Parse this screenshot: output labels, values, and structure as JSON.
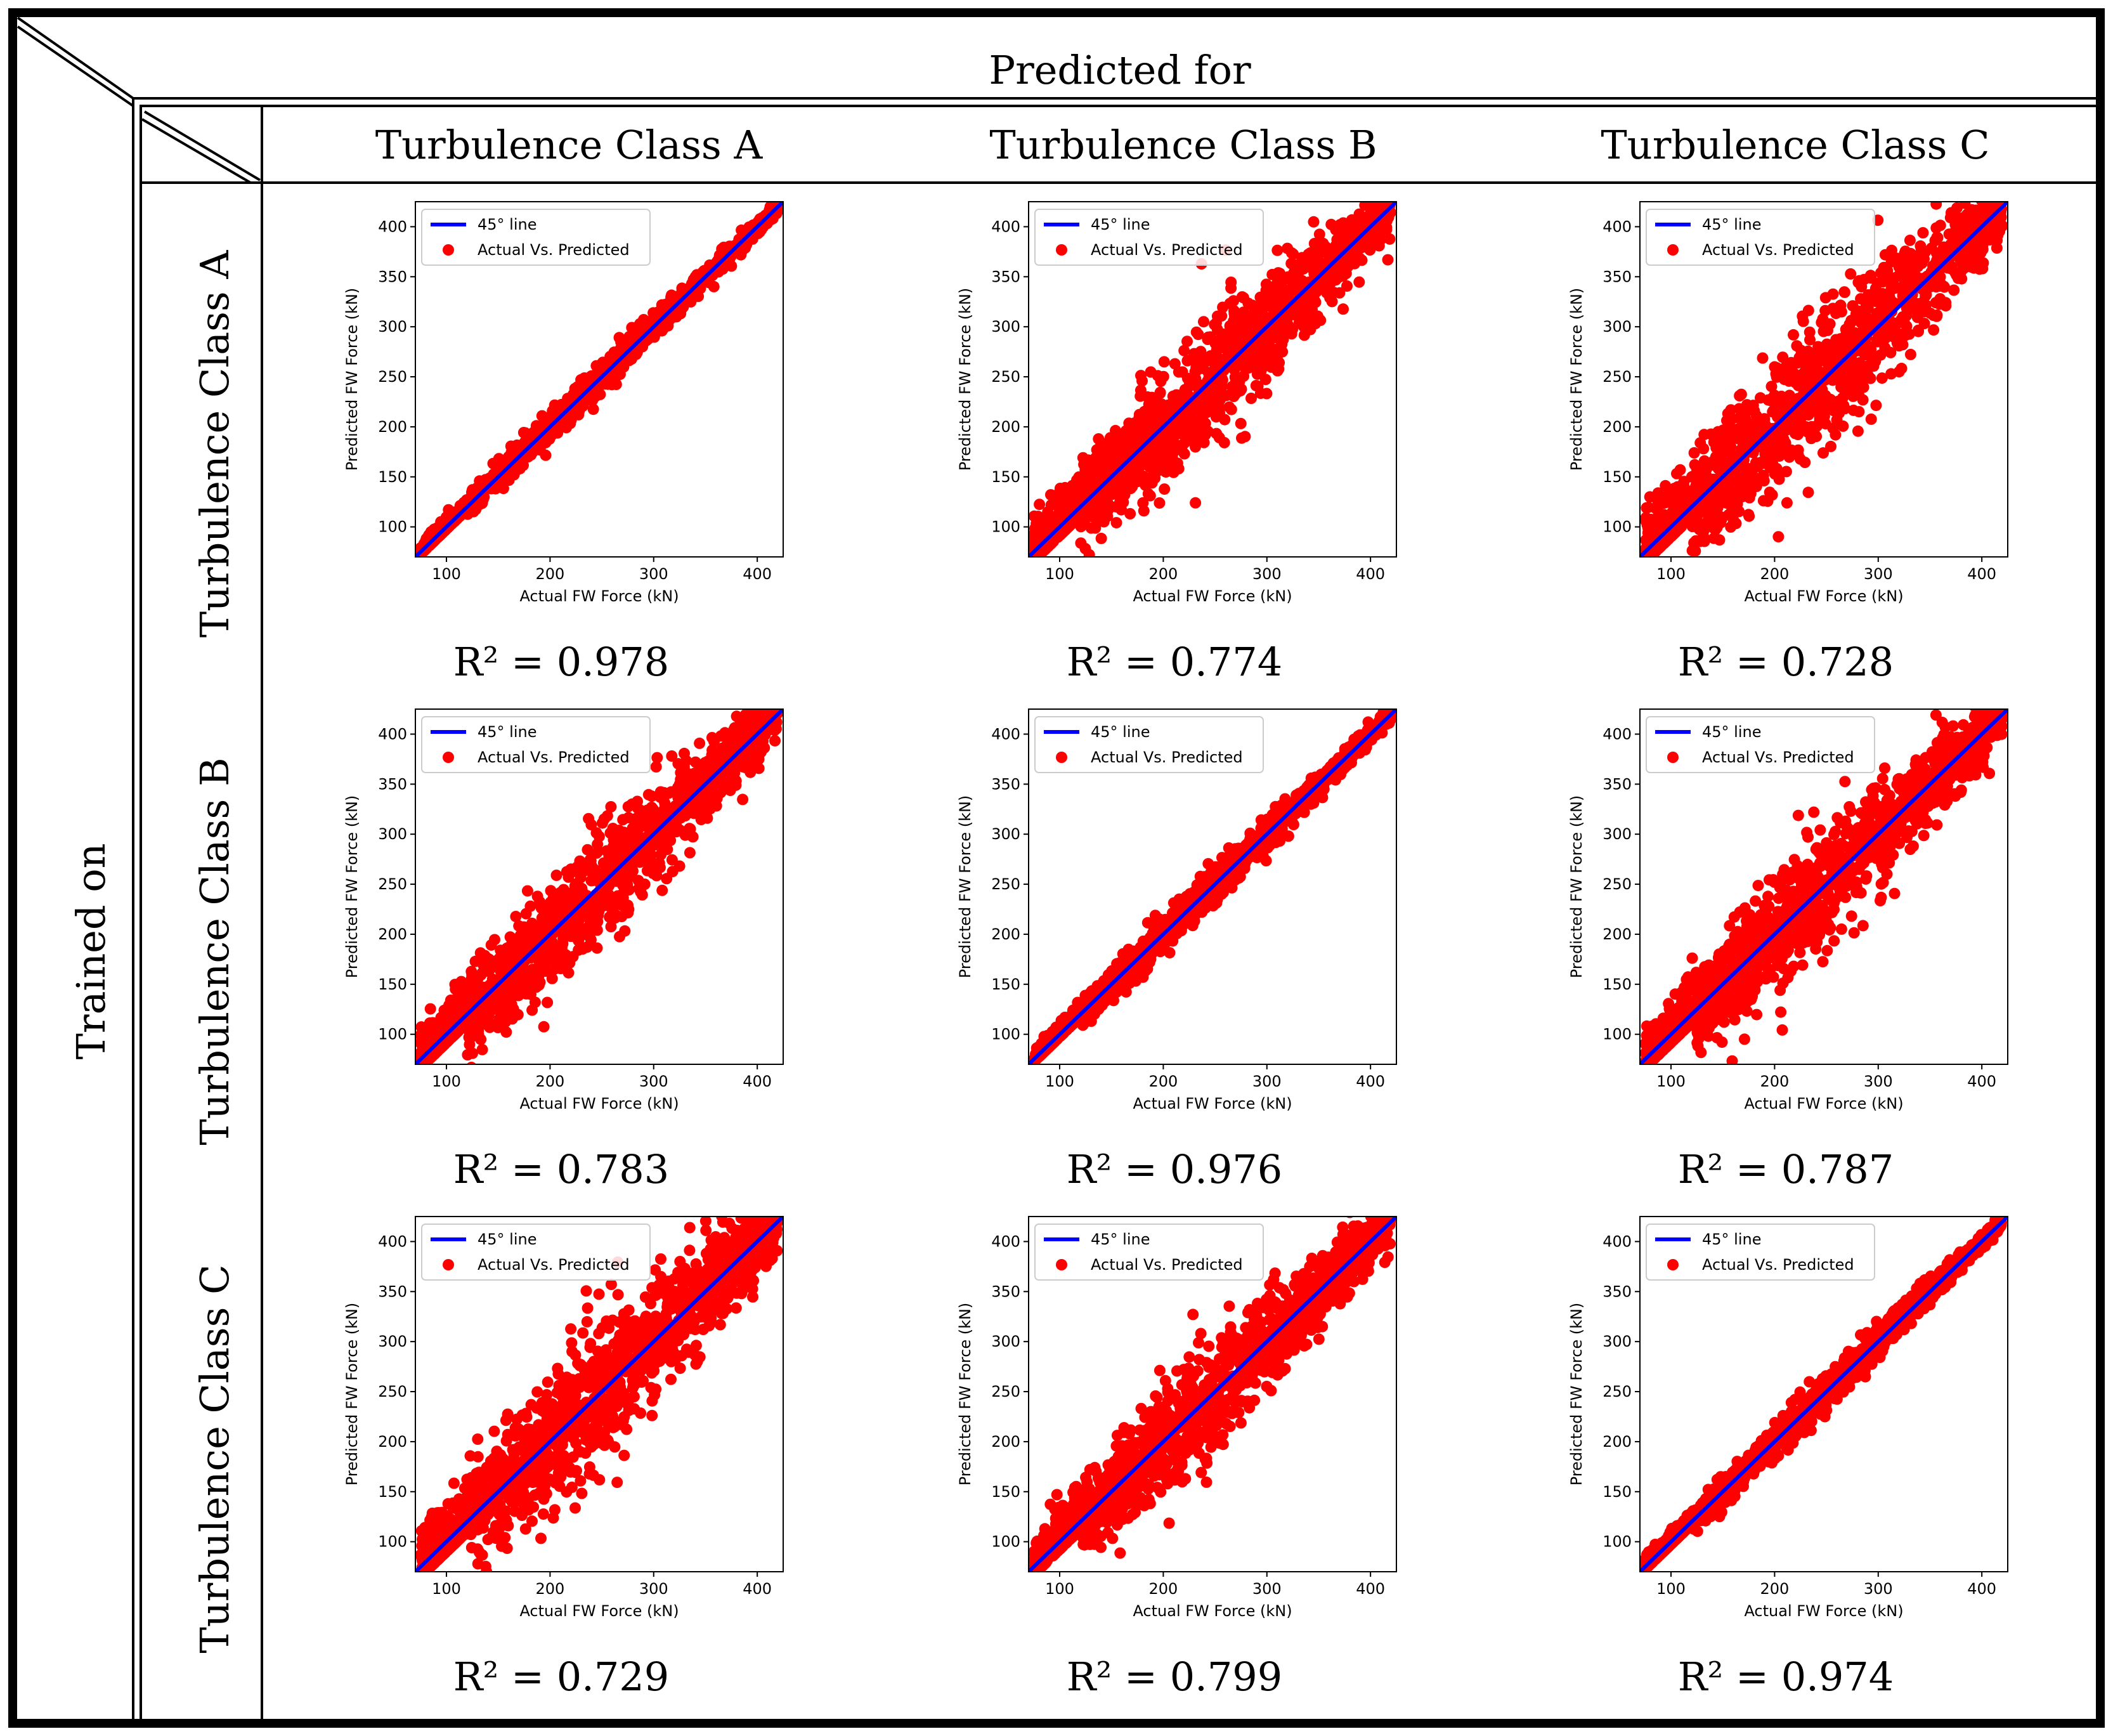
{
  "header": {
    "predicted_for": "Predicted for",
    "trained_on": "Trained on",
    "columns": [
      "Turbulence Class A",
      "Turbulence Class B",
      "Turbulence Class C"
    ],
    "rows": [
      "Turbulence Class A",
      "Turbulence Class B",
      "Turbulence Class C"
    ]
  },
  "colors": {
    "points": "#ff0000",
    "reference_line": "#0000ff",
    "frame": "#000000"
  },
  "chart_data": [
    {
      "type": "scatter",
      "trained_on": "Turbulence Class A",
      "predicted_for": "Turbulence Class A",
      "r2_label": "R² = 0.978",
      "spread": 7,
      "xlabel": "Actual FW Force (kN)",
      "ylabel": "Predicted FW Force (kN)",
      "xlim": [
        70,
        425
      ],
      "ylim": [
        70,
        425
      ],
      "xticks": [
        100,
        200,
        300,
        400
      ],
      "yticks": [
        100,
        150,
        200,
        250,
        300,
        350,
        400
      ],
      "legend": [
        "45° line",
        "Actual Vs. Predicted"
      ]
    },
    {
      "type": "scatter",
      "trained_on": "Turbulence Class A",
      "predicted_for": "Turbulence Class B",
      "r2_label": "R² = 0.774",
      "spread": 28,
      "xlabel": "Actual FW Force (kN)",
      "ylabel": "Predicted FW Force (kN)",
      "xlim": [
        70,
        425
      ],
      "ylim": [
        70,
        425
      ],
      "xticks": [
        100,
        200,
        300,
        400
      ],
      "yticks": [
        100,
        150,
        200,
        250,
        300,
        350,
        400
      ],
      "legend": [
        "45° line",
        "Actual Vs. Predicted"
      ]
    },
    {
      "type": "scatter",
      "trained_on": "Turbulence Class A",
      "predicted_for": "Turbulence Class C",
      "r2_label": "R² = 0.728",
      "spread": 32,
      "xlabel": "Actual FW Force (kN)",
      "ylabel": "Predicted FW Force (kN)",
      "xlim": [
        70,
        425
      ],
      "ylim": [
        70,
        425
      ],
      "xticks": [
        100,
        200,
        300,
        400
      ],
      "yticks": [
        100,
        150,
        200,
        250,
        300,
        350,
        400
      ],
      "legend": [
        "45° line",
        "Actual Vs. Predicted"
      ]
    },
    {
      "type": "scatter",
      "trained_on": "Turbulence Class B",
      "predicted_for": "Turbulence Class A",
      "r2_label": "R² = 0.783",
      "spread": 27,
      "xlabel": "Actual FW Force (kN)",
      "ylabel": "Predicted FW Force (kN)",
      "xlim": [
        70,
        425
      ],
      "ylim": [
        70,
        425
      ],
      "xticks": [
        100,
        200,
        300,
        400
      ],
      "yticks": [
        100,
        150,
        200,
        250,
        300,
        350,
        400
      ],
      "legend": [
        "45° line",
        "Actual Vs. Predicted"
      ]
    },
    {
      "type": "scatter",
      "trained_on": "Turbulence Class B",
      "predicted_for": "Turbulence Class B",
      "r2_label": "R² = 0.976",
      "spread": 8,
      "xlabel": "Actual FW Force (kN)",
      "ylabel": "Predicted FW Force (kN)",
      "xlim": [
        70,
        425
      ],
      "ylim": [
        70,
        425
      ],
      "xticks": [
        100,
        200,
        300,
        400
      ],
      "yticks": [
        100,
        150,
        200,
        250,
        300,
        350,
        400
      ],
      "legend": [
        "45° line",
        "Actual Vs. Predicted"
      ]
    },
    {
      "type": "scatter",
      "trained_on": "Turbulence Class B",
      "predicted_for": "Turbulence Class C",
      "r2_label": "R² = 0.787",
      "spread": 27,
      "xlabel": "Actual FW Force (kN)",
      "ylabel": "Predicted FW Force (kN)",
      "xlim": [
        70,
        425
      ],
      "ylim": [
        70,
        425
      ],
      "xticks": [
        100,
        200,
        300,
        400
      ],
      "yticks": [
        100,
        150,
        200,
        250,
        300,
        350,
        400
      ],
      "legend": [
        "45° line",
        "Actual Vs. Predicted"
      ]
    },
    {
      "type": "scatter",
      "trained_on": "Turbulence Class C",
      "predicted_for": "Turbulence Class A",
      "r2_label": "R² = 0.729",
      "spread": 32,
      "xlabel": "Actual FW Force (kN)",
      "ylabel": "Predicted FW Force (kN)",
      "xlim": [
        70,
        425
      ],
      "ylim": [
        70,
        425
      ],
      "xticks": [
        100,
        200,
        300,
        400
      ],
      "yticks": [
        100,
        150,
        200,
        250,
        300,
        350,
        400
      ],
      "legend": [
        "45° line",
        "Actual Vs. Predicted"
      ]
    },
    {
      "type": "scatter",
      "trained_on": "Turbulence Class C",
      "predicted_for": "Turbulence Class B",
      "r2_label": "R² = 0.799",
      "spread": 25,
      "xlabel": "Actual FW Force (kN)",
      "ylabel": "Predicted FW Force (kN)",
      "xlim": [
        70,
        425
      ],
      "ylim": [
        70,
        425
      ],
      "xticks": [
        100,
        200,
        300,
        400
      ],
      "yticks": [
        100,
        150,
        200,
        250,
        300,
        350,
        400
      ],
      "legend": [
        "45° line",
        "Actual Vs. Predicted"
      ]
    },
    {
      "type": "scatter",
      "trained_on": "Turbulence Class C",
      "predicted_for": "Turbulence Class C",
      "r2_label": "R² = 0.974",
      "spread": 8,
      "xlabel": "Actual FW Force (kN)",
      "ylabel": "Predicted FW Force (kN)",
      "xlim": [
        70,
        425
      ],
      "ylim": [
        70,
        425
      ],
      "xticks": [
        100,
        200,
        300,
        400
      ],
      "yticks": [
        100,
        150,
        200,
        250,
        300,
        350,
        400
      ],
      "legend": [
        "45° line",
        "Actual Vs. Predicted"
      ]
    }
  ]
}
